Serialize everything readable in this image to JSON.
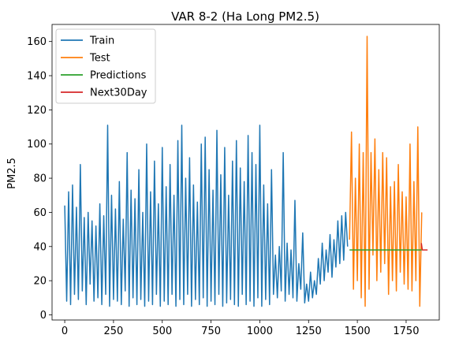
{
  "chart_data": {
    "type": "line",
    "title": "VAR 8-2 (Ha Long PM2.5)",
    "xlabel": "",
    "ylabel": "PM2.5",
    "xlim": [
      -65,
      1920
    ],
    "ylim": [
      -3,
      170
    ],
    "xticks": [
      0,
      250,
      500,
      750,
      1000,
      1250,
      1500,
      1750
    ],
    "yticks": [
      0,
      20,
      40,
      60,
      80,
      100,
      120,
      140,
      160
    ],
    "grid": false,
    "legend_position": "top-left",
    "series": [
      {
        "name": "Train",
        "color": "#1f77b4",
        "x": [
          0,
          10,
          20,
          30,
          40,
          50,
          60,
          70,
          80,
          90,
          100,
          110,
          120,
          130,
          140,
          150,
          160,
          170,
          180,
          190,
          200,
          210,
          220,
          230,
          240,
          250,
          260,
          270,
          280,
          290,
          300,
          310,
          320,
          330,
          340,
          350,
          360,
          370,
          380,
          390,
          400,
          410,
          420,
          430,
          440,
          450,
          460,
          470,
          480,
          490,
          500,
          510,
          520,
          530,
          540,
          550,
          560,
          570,
          580,
          590,
          600,
          610,
          620,
          630,
          640,
          650,
          660,
          670,
          680,
          690,
          700,
          710,
          720,
          730,
          740,
          750,
          760,
          770,
          780,
          790,
          800,
          810,
          820,
          830,
          840,
          850,
          860,
          870,
          880,
          890,
          900,
          910,
          920,
          930,
          940,
          950,
          960,
          970,
          980,
          990,
          1000,
          1010,
          1020,
          1030,
          1040,
          1050,
          1060,
          1070,
          1080,
          1090,
          1100,
          1110,
          1120,
          1130,
          1140,
          1150,
          1160,
          1170,
          1180,
          1190,
          1200,
          1210,
          1220,
          1230,
          1240,
          1250,
          1260,
          1270,
          1280,
          1290,
          1300,
          1310,
          1320,
          1330,
          1340,
          1350,
          1360,
          1370,
          1380,
          1390,
          1400,
          1410,
          1420,
          1430,
          1440,
          1450
        ],
        "values": [
          64,
          8,
          72,
          6,
          76,
          12,
          63,
          9,
          88,
          14,
          57,
          6,
          60,
          18,
          55,
          8,
          52,
          10,
          65,
          6,
          58,
          12,
          111,
          5,
          70,
          9,
          62,
          8,
          78,
          6,
          56,
          14,
          95,
          5,
          73,
          10,
          68,
          6,
          85,
          9,
          60,
          5,
          100,
          8,
          72,
          6,
          90,
          12,
          65,
          5,
          98,
          8,
          75,
          6,
          88,
          12,
          70,
          5,
          102,
          9,
          111,
          6,
          80,
          12,
          92,
          5,
          76,
          9,
          66,
          6,
          100,
          10,
          104,
          5,
          85,
          8,
          73,
          6,
          108,
          12,
          82,
          5,
          98,
          7,
          70,
          9,
          90,
          6,
          102,
          5,
          86,
          12,
          78,
          6,
          105,
          8,
          95,
          5,
          88,
          10,
          111,
          5,
          76,
          9,
          65,
          6,
          85,
          12,
          35,
          10,
          40,
          14,
          95,
          8,
          42,
          12,
          38,
          10,
          67,
          8,
          30,
          15,
          48,
          7,
          18,
          8,
          25,
          10,
          20,
          12,
          33,
          18,
          42,
          20,
          38,
          25,
          47,
          22,
          44,
          28,
          55,
          30,
          58,
          32,
          60,
          40
        ]
      },
      {
        "name": "Test",
        "color": "#ff7f0e",
        "x": [
          1460,
          1470,
          1480,
          1490,
          1500,
          1510,
          1520,
          1530,
          1540,
          1550,
          1560,
          1570,
          1580,
          1590,
          1600,
          1610,
          1620,
          1630,
          1640,
          1650,
          1660,
          1670,
          1680,
          1690,
          1700,
          1710,
          1720,
          1730,
          1740,
          1750,
          1760,
          1770,
          1780,
          1790,
          1800,
          1810,
          1820,
          1830
        ],
        "values": [
          44,
          107,
          15,
          80,
          20,
          100,
          10,
          95,
          5,
          163,
          15,
          95,
          35,
          103,
          20,
          85,
          25,
          95,
          30,
          92,
          12,
          75,
          20,
          78,
          14,
          88,
          25,
          72,
          18,
          69,
          15,
          100,
          14,
          78,
          20,
          110,
          5,
          60
        ]
      },
      {
        "name": "Predictions",
        "color": "#2ca02c",
        "x": [
          1460,
          1830
        ],
        "values": [
          38,
          38
        ]
      },
      {
        "name": "Next30Day",
        "color": "#d62728",
        "x": [
          1828,
          1833,
          1840,
          1850,
          1860
        ],
        "values": [
          42,
          38,
          38,
          38,
          38
        ]
      }
    ]
  }
}
